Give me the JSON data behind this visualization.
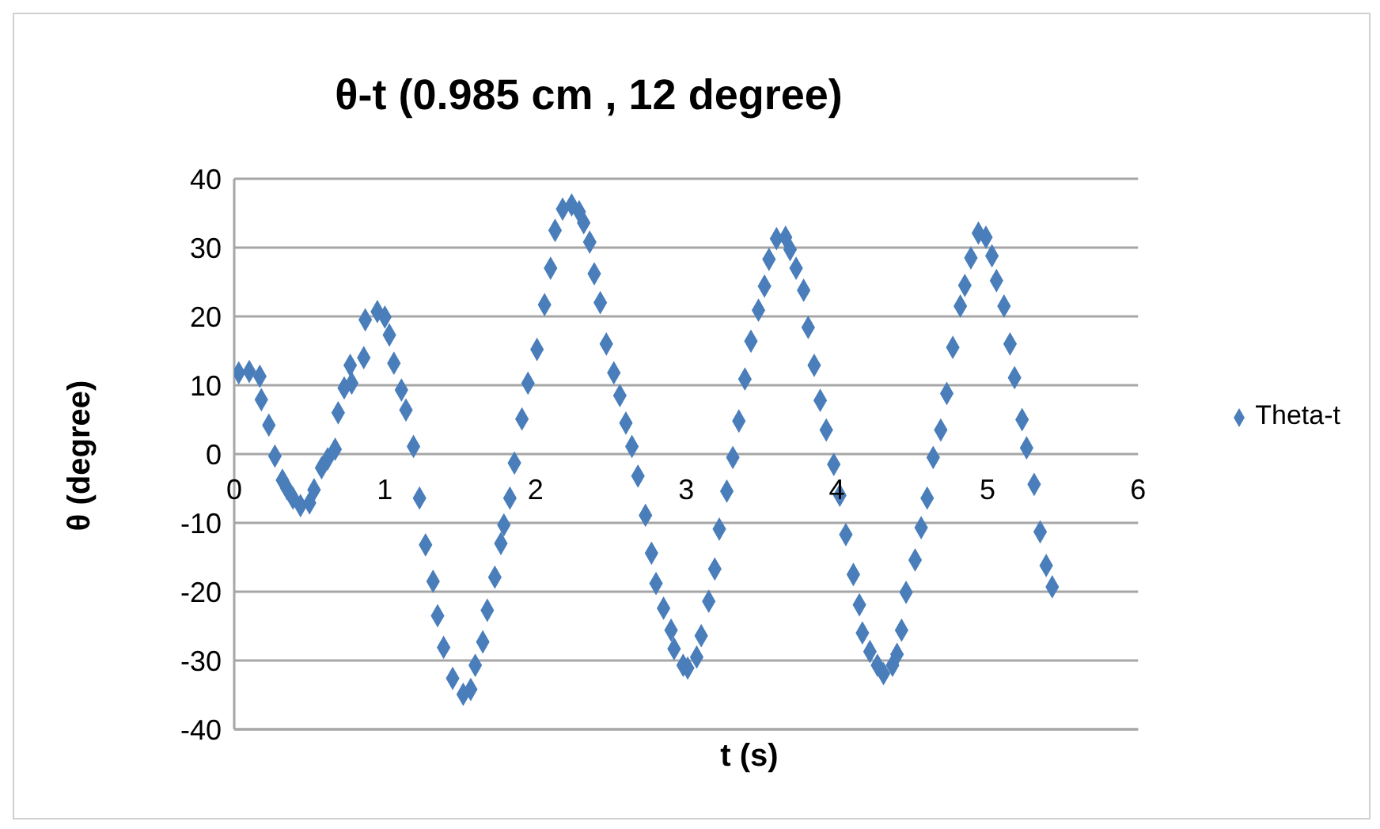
{
  "chart_data": {
    "type": "scatter",
    "title": "θ-t (0.985 cm , 12 degree)",
    "xlabel": "t (s)",
    "ylabel": "θ (degree)",
    "xlim": [
      0,
      6
    ],
    "xticks": [
      0,
      1,
      2,
      3,
      4,
      5,
      6
    ],
    "ylim": [
      -40,
      40
    ],
    "yticks": [
      -40,
      -30,
      -20,
      -10,
      0,
      10,
      20,
      30,
      40
    ],
    "grid": "y",
    "legend": "right",
    "marker": "diamond",
    "series": [
      {
        "name": "Theta-t",
        "color": "#4a7ebb",
        "x": [
          0.03,
          0.1,
          0.17,
          0.18,
          0.23,
          0.27,
          0.32,
          0.35,
          0.39,
          0.44,
          0.5,
          0.53,
          0.58,
          0.62,
          0.67,
          0.69,
          0.73,
          0.78,
          0.77,
          0.86,
          0.87,
          0.95,
          1.0,
          1.03,
          1.06,
          1.11,
          1.14,
          1.19,
          1.23,
          1.27,
          1.32,
          1.35,
          1.39,
          1.45,
          1.52,
          1.57,
          1.6,
          1.65,
          1.68,
          1.73,
          1.77,
          1.79,
          1.83,
          1.86,
          1.91,
          1.95,
          2.01,
          2.06,
          2.1,
          2.13,
          2.18,
          2.24,
          2.29,
          2.32,
          2.36,
          2.39,
          2.43,
          2.47,
          2.52,
          2.56,
          2.6,
          2.64,
          2.68,
          2.73,
          2.77,
          2.8,
          2.85,
          2.9,
          2.92,
          2.98,
          3.01,
          3.07,
          3.1,
          3.15,
          3.19,
          3.22,
          3.27,
          3.31,
          3.35,
          3.39,
          3.43,
          3.48,
          3.52,
          3.55,
          3.6,
          3.66,
          3.69,
          3.73,
          3.78,
          3.81,
          3.85,
          3.89,
          3.93,
          3.98,
          4.02,
          4.06,
          4.11,
          4.15,
          4.17,
          4.22,
          4.27,
          4.31,
          4.37,
          4.4,
          4.43,
          4.46,
          4.52,
          4.56,
          4.6,
          4.64,
          4.69,
          4.73,
          4.77,
          4.82,
          4.85,
          4.89,
          4.94,
          4.99,
          5.03,
          5.06,
          5.11,
          5.15,
          5.18,
          5.23,
          5.26,
          5.31,
          5.35,
          5.39,
          5.43
        ],
        "values": [
          11.8,
          12,
          11.3,
          7.9,
          4.2,
          -0.3,
          -3.8,
          -5,
          -6.4,
          -7.5,
          -7.1,
          -5.2,
          -2,
          -0.7,
          0.7,
          6,
          9.6,
          10.3,
          12.9,
          14,
          19.5,
          20.7,
          19.9,
          17.3,
          13.2,
          9.3,
          6.4,
          1.1,
          -6.4,
          -13.2,
          -18.5,
          -23.5,
          -28.1,
          -32.6,
          -34.9,
          -34.2,
          -30.7,
          -27.3,
          -22.7,
          -17.9,
          -13,
          -10.3,
          -6.4,
          -1.3,
          5.1,
          10.3,
          15.2,
          21.7,
          27,
          32.5,
          35.6,
          36.2,
          35.2,
          33.6,
          30.8,
          26.2,
          22,
          16,
          11.8,
          8.5,
          4.5,
          1.1,
          -3.2,
          -8.9,
          -14.4,
          -18.8,
          -22.4,
          -25.6,
          -28.3,
          -30.7,
          -31.1,
          -29.5,
          -26.4,
          -21.4,
          -16.7,
          -10.9,
          -5.4,
          -0.5,
          4.8,
          10.9,
          16.4,
          20.9,
          24.4,
          28.3,
          31.3,
          31.5,
          29.7,
          27,
          23.8,
          18.4,
          12.9,
          7.8,
          3.5,
          -1.5,
          -6,
          -11.7,
          -17.5,
          -21.9,
          -26,
          -28.7,
          -30.7,
          -31.9,
          -30.7,
          -29.1,
          -25.6,
          -20.1,
          -15.4,
          -10.7,
          -6.4,
          -0.5,
          3.5,
          8.8,
          15.5,
          21.5,
          24.5,
          28.5,
          32.1,
          31.5,
          28.8,
          25.2,
          21.5,
          16,
          11.1,
          5,
          0.9,
          -4.4,
          -11.3,
          -16.2,
          -19.3
        ]
      }
    ]
  }
}
